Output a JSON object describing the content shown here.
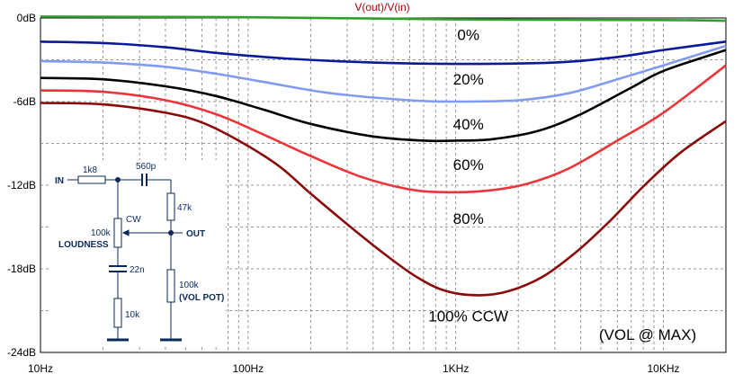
{
  "chart_data": {
    "type": "line",
    "title": "V(out)/V(in)",
    "annotation": "(VOL @ MAX)",
    "x_scale": "log",
    "xlim": [
      10,
      20000
    ],
    "ylim": [
      -24,
      0
    ],
    "x_ticks": [
      {
        "value": 10,
        "label": "10Hz"
      },
      {
        "value": 100,
        "label": "100Hz"
      },
      {
        "value": 1000,
        "label": "1KHz"
      },
      {
        "value": 10000,
        "label": "10KHz"
      }
    ],
    "y_ticks": [
      {
        "value": 0,
        "label": "0dB"
      },
      {
        "value": -6,
        "label": "-6dB"
      },
      {
        "value": -12,
        "label": "-12dB"
      },
      {
        "value": -18,
        "label": "-18dB"
      },
      {
        "value": -24,
        "label": "-24dB"
      }
    ],
    "grid": true,
    "series": [
      {
        "name": "0%",
        "color": "#2ea02e",
        "label_at": [
          1150,
          -1.2
        ],
        "points": [
          [
            10,
            0.1
          ],
          [
            100,
            0.05
          ],
          [
            1000,
            -0.1
          ],
          [
            10000,
            -0.15
          ],
          [
            20000,
            -0.2
          ]
        ]
      },
      {
        "name": "20%",
        "color": "#0a1a9a",
        "label_at": [
          1150,
          -4.4
        ],
        "points": [
          [
            10,
            -1.7
          ],
          [
            20,
            -1.8
          ],
          [
            40,
            -2.1
          ],
          [
            70,
            -2.5
          ],
          [
            150,
            -2.9
          ],
          [
            400,
            -3.2
          ],
          [
            1000,
            -3.3
          ],
          [
            3000,
            -3.2
          ],
          [
            6000,
            -2.8
          ],
          [
            10000,
            -2.3
          ],
          [
            20000,
            -1.7
          ]
        ]
      },
      {
        "name": "40%",
        "color": "#7f9bf2",
        "label_at": [
          1150,
          -7.6
        ],
        "points": [
          [
            10,
            -3.1
          ],
          [
            20,
            -3.2
          ],
          [
            40,
            -3.5
          ],
          [
            70,
            -4.0
          ],
          [
            120,
            -4.6
          ],
          [
            250,
            -5.4
          ],
          [
            600,
            -5.9
          ],
          [
            1000,
            -6.0
          ],
          [
            2000,
            -5.9
          ],
          [
            3500,
            -5.4
          ],
          [
            6000,
            -4.4
          ],
          [
            10000,
            -3.4
          ],
          [
            20000,
            -2.0
          ]
        ]
      },
      {
        "name": "60%",
        "color": "#000000",
        "label_at": [
          1150,
          -10.5
        ],
        "points": [
          [
            10,
            -4.3
          ],
          [
            20,
            -4.4
          ],
          [
            40,
            -4.9
          ],
          [
            70,
            -5.6
          ],
          [
            120,
            -6.6
          ],
          [
            200,
            -7.6
          ],
          [
            400,
            -8.5
          ],
          [
            700,
            -8.8
          ],
          [
            1000,
            -8.8
          ],
          [
            1500,
            -8.7
          ],
          [
            2500,
            -8.1
          ],
          [
            4000,
            -6.9
          ],
          [
            7000,
            -5.0
          ],
          [
            10000,
            -3.8
          ],
          [
            20000,
            -2.3
          ]
        ]
      },
      {
        "name": "80%",
        "color": "#e8363a",
        "label_at": [
          1150,
          -14.4
        ],
        "points": [
          [
            10,
            -5.2
          ],
          [
            20,
            -5.3
          ],
          [
            40,
            -5.9
          ],
          [
            70,
            -6.9
          ],
          [
            120,
            -8.4
          ],
          [
            200,
            -9.9
          ],
          [
            350,
            -11.4
          ],
          [
            600,
            -12.3
          ],
          [
            900,
            -12.5
          ],
          [
            1400,
            -12.4
          ],
          [
            2200,
            -11.9
          ],
          [
            3500,
            -10.8
          ],
          [
            6000,
            -8.8
          ],
          [
            10000,
            -6.8
          ],
          [
            20000,
            -3.4
          ]
        ]
      },
      {
        "name": "100% CCW",
        "color": "#8b0a0a",
        "label_at": [
          1150,
          -21.4
        ],
        "points": [
          [
            10,
            -6.1
          ],
          [
            20,
            -6.2
          ],
          [
            40,
            -6.8
          ],
          [
            60,
            -7.5
          ],
          [
            90,
            -8.8
          ],
          [
            140,
            -10.6
          ],
          [
            200,
            -12.6
          ],
          [
            300,
            -14.8
          ],
          [
            450,
            -16.9
          ],
          [
            650,
            -18.6
          ],
          [
            900,
            -19.6
          ],
          [
            1300,
            -19.9
          ],
          [
            1800,
            -19.6
          ],
          [
            2600,
            -18.6
          ],
          [
            3800,
            -16.8
          ],
          [
            5500,
            -14.6
          ],
          [
            8000,
            -12.1
          ],
          [
            12000,
            -9.7
          ],
          [
            20000,
            -7.4
          ]
        ]
      }
    ],
    "inset_schematic": {
      "labels": {
        "input": "IN",
        "r_series": "1k8",
        "c_series": "560p",
        "r_top": "47k",
        "pot_loud_value": "100k",
        "pot_loud_name": "LOUDNESS",
        "wiper_dir": "CW",
        "output": "OUT",
        "c_shunt": "22n",
        "r_bottom": "10k",
        "pot_vol_value": "100k",
        "pot_vol_name": "(VOL POT)"
      }
    }
  }
}
